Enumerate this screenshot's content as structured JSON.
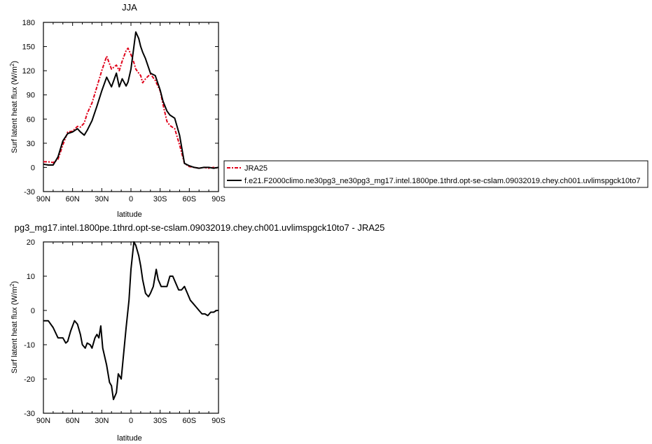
{
  "chart_data": [
    {
      "type": "line",
      "title": "JJA",
      "xlabel": "latitude",
      "ylabel": "Surf latent heat flux (W/m",
      "ylabel_sup": "2",
      "ylabel_end": ")",
      "xlim": [
        90,
        -90
      ],
      "ylim": [
        -30,
        180
      ],
      "xticks": [
        90,
        60,
        30,
        0,
        -30,
        -60,
        -90
      ],
      "xtick_labels": [
        "90N",
        "60N",
        "30N",
        "0",
        "30S",
        "60S",
        "90S"
      ],
      "yticks": [
        -30,
        0,
        30,
        60,
        90,
        120,
        150,
        180
      ],
      "ytick_labels": [
        "-30",
        "0",
        "30",
        "60",
        "90",
        "120",
        "150",
        "180"
      ],
      "legend_position": "right",
      "series": [
        {
          "name": "JRA25",
          "color": "#e0001a",
          "dash": true,
          "x": [
            90,
            85,
            80,
            75,
            70,
            65,
            60,
            55,
            52,
            48,
            45,
            40,
            35,
            30,
            25,
            20,
            15,
            12,
            9,
            5,
            3,
            0,
            -3,
            -5,
            -8,
            -10,
            -12,
            -15,
            -20,
            -25,
            -30,
            -33,
            -37,
            -40,
            -45,
            -50,
            -55,
            -60,
            -65,
            -70,
            -75,
            -80,
            -85,
            -90
          ],
          "y": [
            7,
            7,
            6,
            10,
            28,
            44,
            45,
            51,
            50,
            55,
            67,
            80,
            100,
            120,
            138,
            122,
            127,
            120,
            132,
            145,
            148,
            140,
            130,
            122,
            117,
            114,
            105,
            110,
            116,
            108,
            95,
            78,
            57,
            52,
            48,
            28,
            5,
            1,
            0,
            -1,
            0,
            -1,
            0,
            -1
          ]
        },
        {
          "name": "f.e21.F2000climo.ne30pg3_ne30pg3_mg17.intel.1800pe.1thrd.opt-se-cslam.09032019.chey.ch001.uvlimspgck10to7",
          "color": "#000000",
          "dash": false,
          "x": [
            90,
            85,
            80,
            75,
            70,
            65,
            60,
            55,
            52,
            48,
            45,
            40,
            35,
            30,
            25,
            20,
            15,
            12,
            9,
            5,
            3,
            0,
            -3,
            -5,
            -8,
            -10,
            -12,
            -15,
            -20,
            -25,
            -30,
            -33,
            -37,
            -40,
            -45,
            -50,
            -55,
            -60,
            -65,
            -70,
            -75,
            -80,
            -85,
            -90
          ],
          "y": [
            4,
            3,
            3,
            13,
            33,
            42,
            44,
            48,
            44,
            40,
            46,
            58,
            76,
            95,
            112,
            100,
            117,
            100,
            110,
            101,
            106,
            122,
            150,
            168,
            160,
            150,
            143,
            135,
            117,
            114,
            96,
            82,
            70,
            65,
            61,
            40,
            5,
            2,
            0,
            -1,
            0,
            0,
            -1,
            0
          ]
        }
      ]
    },
    {
      "type": "line",
      "title": "pg3_mg17.intel.1800pe.1thrd.opt-se-cslam.09032019.chey.ch001.uvlimspgck10to7 - JRA25",
      "xlabel": "latitude",
      "ylabel": "Surf latent heat flux (W/m",
      "ylabel_sup": "2",
      "ylabel_end": ")",
      "xlim": [
        90,
        -90
      ],
      "ylim": [
        -30,
        20
      ],
      "xticks": [
        90,
        60,
        30,
        0,
        -30,
        -60,
        -90
      ],
      "xtick_labels": [
        "90N",
        "60N",
        "30N",
        "0",
        "30S",
        "60S",
        "90S"
      ],
      "yticks": [
        -30,
        -20,
        -10,
        0,
        10,
        20
      ],
      "ytick_labels": [
        "-30",
        "-20",
        "-10",
        "0",
        "10",
        "20"
      ],
      "series": [
        {
          "color": "#000000",
          "dash": false,
          "x": [
            90,
            85,
            80,
            75,
            70,
            67,
            65,
            62,
            58,
            55,
            52,
            50,
            47,
            45,
            42,
            40,
            37,
            35,
            33,
            31,
            29,
            27,
            25,
            22,
            20,
            18,
            15,
            13,
            10,
            8,
            5,
            2,
            0,
            -3,
            -5,
            -8,
            -10,
            -12,
            -15,
            -18,
            -20,
            -23,
            -26,
            -28,
            -31,
            -34,
            -37,
            -40,
            -43,
            -46,
            -49,
            -52,
            -55,
            -58,
            -61,
            -64,
            -67,
            -70,
            -73,
            -76,
            -79,
            -82,
            -85,
            -88,
            -90
          ],
          "y": [
            -3,
            -3,
            -5,
            -8,
            -8,
            -9.5,
            -9,
            -6,
            -3,
            -4,
            -7,
            -10,
            -11,
            -9.5,
            -10,
            -11,
            -8,
            -7,
            -8,
            -4.5,
            -11,
            -13.5,
            -16,
            -21,
            -22,
            -26,
            -24,
            -18.5,
            -20,
            -14,
            -5,
            3,
            12,
            20,
            19,
            16,
            13,
            9,
            5,
            4,
            5,
            7,
            12,
            9,
            7,
            7,
            7,
            10,
            10,
            8,
            6,
            6,
            7,
            5,
            3,
            2,
            1,
            0,
            -1,
            -1,
            -1.5,
            -0.5,
            -0.5,
            0,
            0
          ]
        }
      ]
    }
  ],
  "legend": {
    "entries": [
      {
        "label": "JRA25",
        "color": "#e0001a",
        "dash": true
      },
      {
        "label": "f.e21.F2000climo.ne30pg3_ne30pg3_mg17.intel.1800pe.1thrd.opt-se-cslam.09032019.chey.ch001.uvlimspgck10to7",
        "color": "#000000",
        "dash": false
      }
    ]
  }
}
